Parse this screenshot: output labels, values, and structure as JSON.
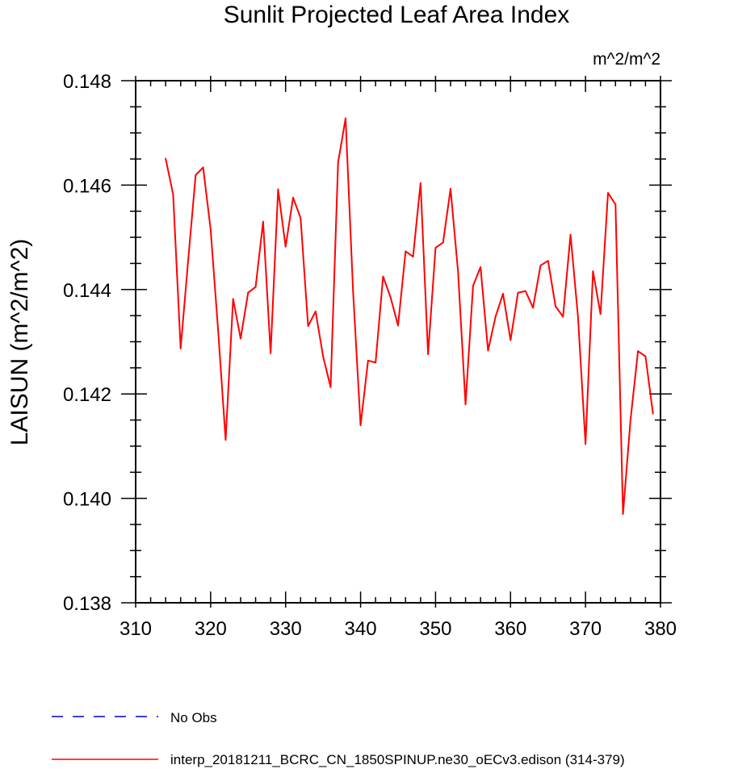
{
  "chart_data": {
    "type": "line",
    "title": "Sunlit Projected Leaf Area Index",
    "units_label": "m^2/m^2",
    "xlabel": "",
    "ylabel": "LAISUN  (m^2/m^2)",
    "xlim": [
      310,
      380
    ],
    "ylim": [
      0.138,
      0.148
    ],
    "x_ticks": [
      310,
      320,
      330,
      340,
      350,
      360,
      370,
      380
    ],
    "x_tick_labels": [
      "310",
      "320",
      "330",
      "340",
      "350",
      "360",
      "370",
      "380"
    ],
    "y_ticks": [
      0.138,
      0.14,
      0.142,
      0.144,
      0.146,
      0.148
    ],
    "y_tick_labels": [
      "0.138",
      "0.140",
      "0.142",
      "0.144",
      "0.146",
      "0.148"
    ],
    "grid": false,
    "legend_placement": "bottom-left, below plot",
    "series": [
      {
        "name": "interp_20181211_BCRC_CN_1850SPINUP.ne30_oECv3.edison (314-379)",
        "color": "#ff0000",
        "style": "solid",
        "x": [
          314,
          315,
          316,
          317,
          318,
          319,
          320,
          321,
          322,
          323,
          324,
          325,
          326,
          327,
          328,
          329,
          330,
          331,
          332,
          333,
          334,
          335,
          336,
          337,
          338,
          339,
          340,
          341,
          342,
          343,
          344,
          345,
          346,
          347,
          348,
          349,
          350,
          351,
          352,
          353,
          354,
          355,
          356,
          357,
          358,
          359,
          360,
          361,
          362,
          363,
          364,
          365,
          366,
          367,
          368,
          369,
          370,
          371,
          372,
          373,
          374,
          375,
          376,
          377,
          378,
          379
        ],
        "values": [
          0.14651,
          0.14582,
          0.14287,
          0.14455,
          0.14619,
          0.14634,
          0.14515,
          0.14322,
          0.14112,
          0.14382,
          0.14306,
          0.14394,
          0.14405,
          0.1453,
          0.14278,
          0.14592,
          0.14482,
          0.14576,
          0.14537,
          0.1433,
          0.14358,
          0.14272,
          0.14213,
          0.14643,
          0.14728,
          0.14396,
          0.1414,
          0.14264,
          0.1426,
          0.14425,
          0.14385,
          0.14331,
          0.14473,
          0.14463,
          0.14604,
          0.14276,
          0.1448,
          0.1449,
          0.14593,
          0.14434,
          0.1418,
          0.14407,
          0.14443,
          0.14283,
          0.14348,
          0.14392,
          0.14303,
          0.14394,
          0.14397,
          0.14365,
          0.14446,
          0.14455,
          0.14368,
          0.14348,
          0.14505,
          0.14347,
          0.14104,
          0.14435,
          0.14353,
          0.14585,
          0.14563,
          0.1397,
          0.1415,
          0.14282,
          0.14272,
          0.14162
        ]
      },
      {
        "name": "No Obs",
        "color": "#0000cc",
        "style": "dashed",
        "x": [],
        "values": []
      }
    ]
  }
}
